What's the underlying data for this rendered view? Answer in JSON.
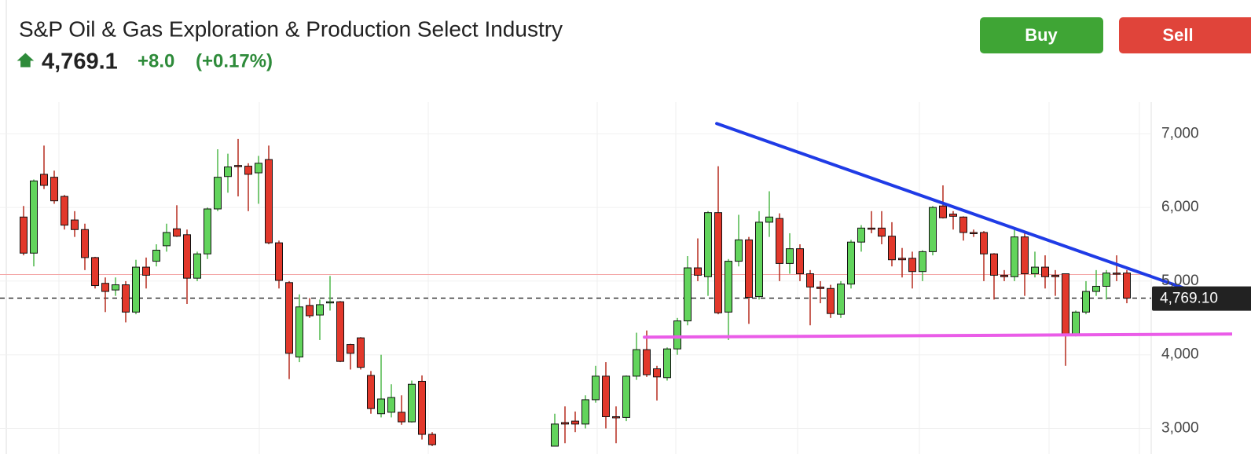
{
  "header": {
    "title": "S&P Oil & Gas Exploration & Production Select Industry",
    "price": "4,769.1",
    "change": "+8.0",
    "change_pct": "(+0.17%)"
  },
  "buttons": [
    "Buy",
    "Sell"
  ],
  "chart_data": {
    "type": "candlestick",
    "up_color": "#62d45c",
    "down_color": "#e2382b",
    "open": [
      5870,
      5380,
      6450,
      6410,
      6150,
      5830,
      5700,
      5320,
      4970,
      4880,
      4950,
      4580,
      5190,
      5270,
      5480,
      5710,
      5630,
      5040,
      5370,
      5980,
      6420,
      6570,
      6560,
      6470,
      6650,
      5520,
      4980,
      3970,
      4670,
      4540,
      4710,
      4720,
      4140,
      4230,
      3720,
      3200,
      3220,
      3220,
      3090,
      3640,
      2920,
      null,
      null,
      null,
      null,
      null,
      null,
      null,
      null,
      null,
      null,
      null,
      2760,
      3080,
      3100,
      3060,
      3390,
      3710,
      3160,
      3150,
      3710,
      4070,
      3810,
      3690,
      4080,
      4460,
      5180,
      5060,
      5930,
      4580,
      5270,
      5560,
      4790,
      5800,
      5850,
      5240,
      5440,
      5100,
      4920,
      4900,
      4550,
      4960,
      5530,
      5720,
      5720,
      5610,
      5310,
      5310,
      5130,
      5400,
      6020,
      5910,
      5870,
      5660,
      5660,
      5370,
      5080,
      5060,
      5600,
      5100,
      5190,
      5080,
      5100,
      4280,
      4580,
      4860,
      4930,
      5110,
      5110
    ],
    "high": [
      6020,
      6380,
      6840,
      6500,
      6170,
      5950,
      5780,
      5330,
      5050,
      5050,
      5000,
      5290,
      5320,
      5500,
      5780,
      6030,
      5700,
      5400,
      6000,
      6790,
      6730,
      6930,
      6600,
      6700,
      6840,
      5550,
      5000,
      4820,
      4770,
      4750,
      5070,
      4730,
      4150,
      4240,
      3780,
      4000,
      3600,
      3450,
      3650,
      3720,
      2950,
      null,
      null,
      null,
      null,
      null,
      null,
      null,
      null,
      null,
      null,
      null,
      3200,
      3300,
      3230,
      3450,
      3850,
      3900,
      3300,
      3720,
      4300,
      4330,
      3850,
      4100,
      4500,
      5340,
      5580,
      5950,
      6560,
      5300,
      5900,
      5600,
      5950,
      6220,
      5920,
      5650,
      5500,
      5150,
      5000,
      4950,
      5000,
      5560,
      5760,
      5950,
      5950,
      5800,
      5450,
      5400,
      5420,
      6020,
      6300,
      5950,
      5880,
      5700,
      5680,
      5380,
      5150,
      5720,
      5650,
      5400,
      5350,
      5150,
      5100,
      4600,
      5000,
      5150,
      5150,
      5350,
      5150
    ],
    "low": [
      5350,
      5200,
      6250,
      6050,
      5700,
      5600,
      5150,
      4900,
      4580,
      4800,
      4440,
      4550,
      4900,
      5200,
      5400,
      5600,
      4690,
      5000,
      5300,
      5950,
      6200,
      6150,
      5950,
      6050,
      5500,
      4900,
      3670,
      3900,
      4500,
      4200,
      4600,
      3900,
      3800,
      3800,
      3200,
      3150,
      3150,
      3050,
      3080,
      2850,
      2760,
      null,
      null,
      null,
      null,
      null,
      null,
      null,
      null,
      null,
      null,
      null,
      2760,
      2800,
      2950,
      3000,
      3350,
      3000,
      2800,
      3100,
      3660,
      3700,
      3380,
      3650,
      4000,
      4400,
      5000,
      4800,
      4550,
      4200,
      5200,
      4420,
      4750,
      5600,
      5000,
      5100,
      5000,
      4400,
      4700,
      4500,
      4500,
      4900,
      5400,
      5650,
      5500,
      5200,
      5050,
      4900,
      5000,
      5350,
      5850,
      5700,
      5550,
      5600,
      5000,
      4750,
      5000,
      5000,
      4800,
      5050,
      4900,
      4800,
      3850,
      4250,
      4550,
      4800,
      4750,
      5000,
      4700
    ],
    "close": [
      5380,
      6360,
      6300,
      6090,
      5760,
      5700,
      5320,
      4940,
      4860,
      4950,
      4580,
      5190,
      5080,
      5420,
      5660,
      5610,
      5040,
      5370,
      5980,
      6410,
      6550,
      6560,
      6450,
      6600,
      5520,
      5010,
      4020,
      4650,
      4530,
      4680,
      4720,
      3910,
      4020,
      3830,
      3270,
      3400,
      3420,
      3090,
      3600,
      2920,
      2780,
      null,
      null,
      null,
      null,
      null,
      null,
      null,
      null,
      null,
      null,
      null,
      3060,
      3060,
      3060,
      3390,
      3710,
      3160,
      3150,
      3710,
      4070,
      3730,
      3700,
      4080,
      4460,
      5180,
      5080,
      5930,
      4570,
      5270,
      5560,
      4780,
      5800,
      5870,
      5240,
      5440,
      5100,
      4920,
      4900,
      4560,
      4960,
      5530,
      5720,
      5710,
      5610,
      5290,
      5290,
      5130,
      5400,
      6000,
      5860,
      5880,
      5660,
      5650,
      5370,
      5080,
      5060,
      5600,
      5100,
      5190,
      5060,
      5060,
      4280,
      4580,
      4860,
      4930,
      5110,
      5100,
      4769.1
    ],
    "ylim": [
      2760,
      7430
    ],
    "yticks": [
      {
        "value": 3000,
        "label": "3,000"
      },
      {
        "value": 4000,
        "label": "4,000"
      },
      {
        "value": 5000,
        "label": "5,000"
      },
      {
        "value": 6000,
        "label": "6,000"
      },
      {
        "value": 7000,
        "label": "7,000"
      }
    ],
    "grid": true,
    "reference_line": {
      "value": 5090,
      "color": "#f4a7a7"
    },
    "last_price": {
      "value": 4769.1,
      "label": "4,769.10"
    },
    "trendlines": [
      {
        "color": "#1f3be6",
        "x": [
          67.85,
          118.3
        ],
        "values": [
          7139,
          4676
        ]
      },
      {
        "color": "#ea5ce8",
        "x": [
          60.77,
          118.3
        ],
        "values": [
          4239,
          4282
        ]
      }
    ]
  }
}
